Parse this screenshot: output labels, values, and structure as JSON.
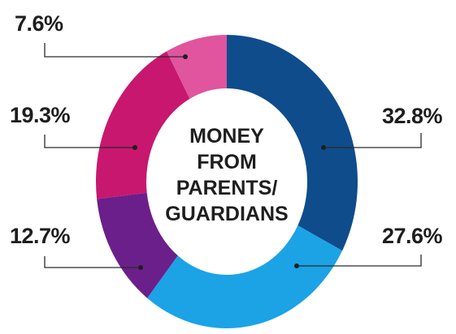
{
  "chart_data": {
    "type": "pie",
    "donut": true,
    "center_label": [
      "MONEY",
      "FROM",
      "PARENTS/",
      "GUARDIANS"
    ],
    "slices": [
      {
        "label": "32.8%",
        "value": 32.8,
        "color": "#0f4c8c"
      },
      {
        "label": "27.6%",
        "value": 27.6,
        "color": "#1ba3e6"
      },
      {
        "label": "12.7%",
        "value": 12.7,
        "color": "#6b1f8a"
      },
      {
        "label": "19.3%",
        "value": 19.3,
        "color": "#c8176f"
      },
      {
        "label": "7.6%",
        "value": 7.6,
        "color": "#e0559e"
      }
    ]
  }
}
